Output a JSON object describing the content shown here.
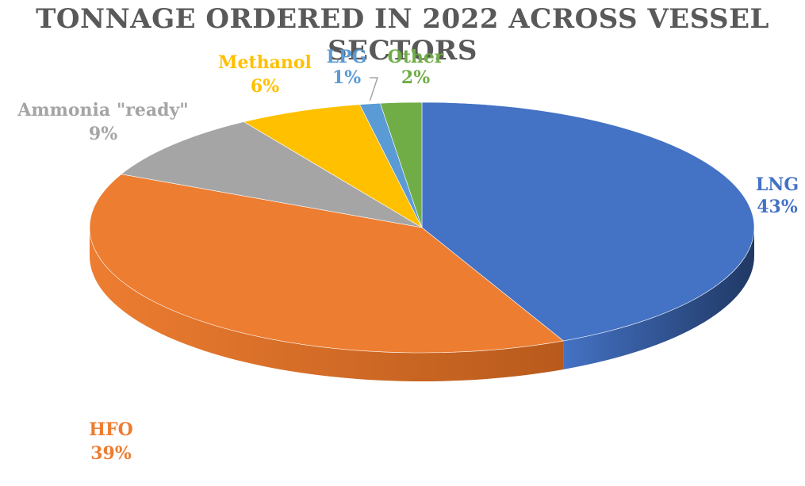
{
  "chart_data": {
    "type": "pie",
    "title": "TONNAGE ORDERED IN 2022 ACROSS VESSEL SECTORS",
    "slices": [
      {
        "name": "LNG",
        "value": 43,
        "label": "43%",
        "color": "#4472C4",
        "side": "#203864"
      },
      {
        "name": "HFO",
        "value": 39,
        "label": "39%",
        "color": "#ED7D31",
        "side": "#B85A1C"
      },
      {
        "name": "Ammonia \"ready\"",
        "value": 9,
        "label": "9%",
        "color": "#A5A5A5",
        "side": "#7F7F7F"
      },
      {
        "name": "Methanol",
        "value": 6,
        "label": "6%",
        "color": "#FFC000",
        "side": "#BF9000"
      },
      {
        "name": "LPG",
        "value": 1,
        "label": "1%",
        "color": "#5B9BD5",
        "side": "#2E75B6"
      },
      {
        "name": "Other",
        "value": 2,
        "label": "2%",
        "color": "#70AD47",
        "side": "#507E32"
      }
    ],
    "legend": "none"
  }
}
